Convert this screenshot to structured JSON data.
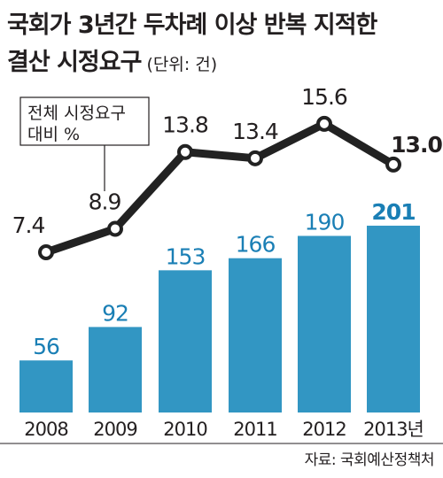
{
  "title_line1": "국회가 3년간 두차례 이상 반복 지적한",
  "title_line2": "결산 시정요구",
  "unit": "(단위: 건)",
  "legend_label_line1": "전체 시정요구",
  "legend_label_line2": "대비 %",
  "source": "자료: 국회예산정책처",
  "colors": {
    "bar": "#3296c3",
    "bar_label": "#1a7fb5",
    "line": "#222222",
    "text": "#231f20"
  },
  "chart_data": {
    "type": "bar",
    "categories": [
      "2008",
      "2009",
      "2010",
      "2011",
      "2012",
      "2013년"
    ],
    "values": [
      56,
      92,
      153,
      166,
      190,
      201
    ],
    "line_series": {
      "type": "line",
      "values": [
        7.4,
        8.9,
        13.8,
        13.4,
        15.6,
        13.0
      ]
    }
  }
}
